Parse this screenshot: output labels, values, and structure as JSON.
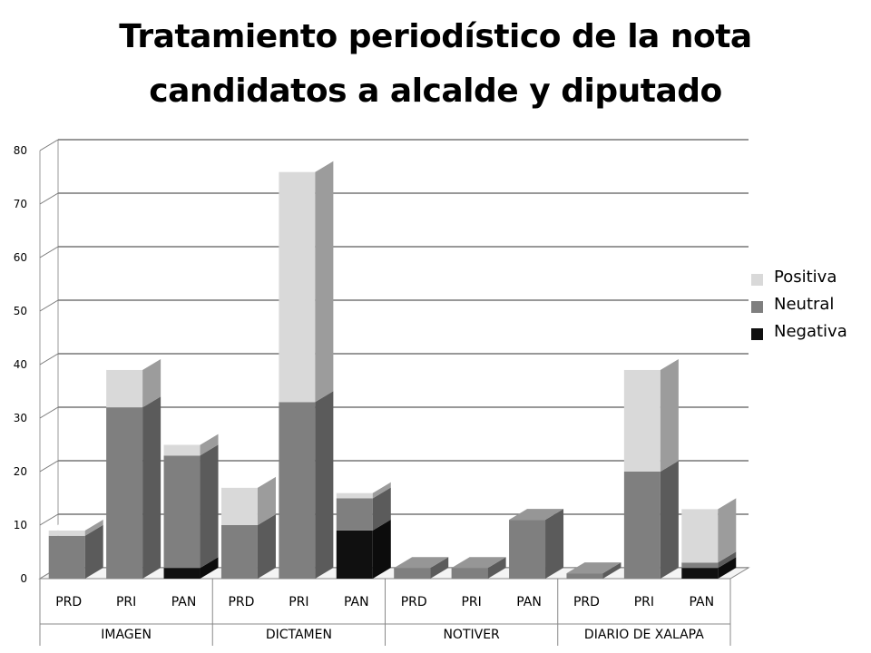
{
  "chart_data": {
    "type": "bar",
    "stacked": true,
    "three_d": true,
    "title_line1": "Tratamiento periodístico de la nota",
    "title_line2": "candidatos a alcalde y diputado",
    "groups": [
      "IMAGEN",
      "DICTAMEN",
      "NOTIVER",
      "DIARIO DE XALAPA"
    ],
    "categories": [
      "PRD",
      "PRI",
      "PAN",
      "PRD",
      "PRI",
      "PAN",
      "PRD",
      "PRI",
      "PAN",
      "PRD",
      "PRI",
      "PAN"
    ],
    "series": [
      {
        "name": "Negativa",
        "color": "#101010",
        "values": [
          0,
          0,
          2,
          0,
          0,
          9,
          0,
          0,
          0,
          0,
          0,
          2
        ]
      },
      {
        "name": "Neutral",
        "color": "#7f7f7f",
        "values": [
          8,
          32,
          21,
          10,
          33,
          6,
          2,
          2,
          11,
          1,
          20,
          1
        ]
      },
      {
        "name": "Positiva",
        "color": "#d9d9d9",
        "values": [
          1,
          7,
          2,
          7,
          43,
          1,
          0,
          0,
          0,
          0,
          19,
          10
        ]
      }
    ],
    "ylim": [
      0,
      80
    ],
    "yticks": [
      "0",
      "10",
      "20",
      "30",
      "40",
      "50",
      "60",
      "70",
      "80"
    ],
    "grid": true,
    "legend_position": "right",
    "legend_order": [
      "Positiva",
      "Neutral",
      "Negativa"
    ]
  }
}
